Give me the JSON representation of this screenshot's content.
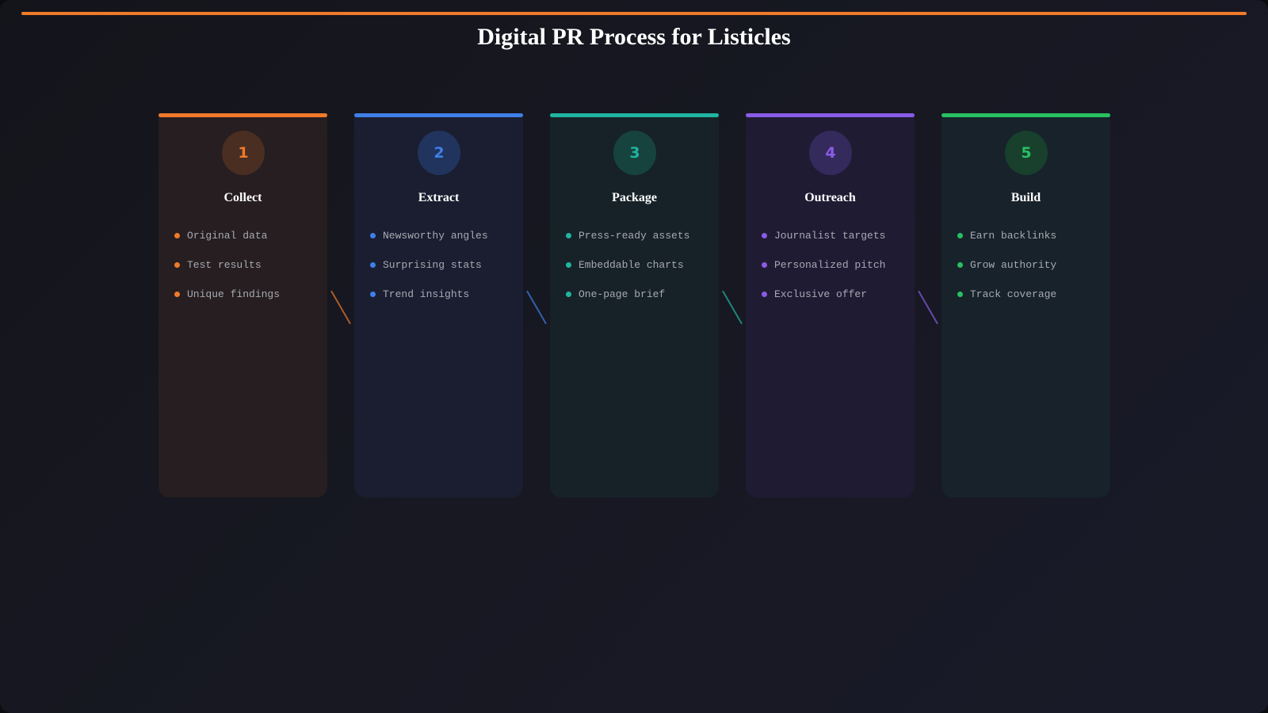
{
  "title": "Digital PR Process for Listicles",
  "accent": "#f07a2a",
  "steps": [
    {
      "number": "1",
      "label": "Collect",
      "color": "#f07a2a",
      "bg": "#261e20",
      "circle_bg": "#4a2e22",
      "items": [
        "Original data",
        "Test results",
        "Unique findings"
      ]
    },
    {
      "number": "2",
      "label": "Extract",
      "color": "#3f7fe8",
      "bg": "#1a1e30",
      "circle_bg": "#21345e",
      "items": [
        "Newsworthy angles",
        "Surprising stats",
        "Trend insights"
      ]
    },
    {
      "number": "3",
      "label": "Package",
      "color": "#1fb5a0",
      "bg": "#172228",
      "circle_bg": "#17433f",
      "items": [
        "Press-ready assets",
        "Embeddable charts",
        "One-page brief"
      ]
    },
    {
      "number": "4",
      "label": "Outreach",
      "color": "#8a5ce6",
      "bg": "#1f1b33",
      "circle_bg": "#352a5c",
      "items": [
        "Journalist targets",
        "Personalized pitch",
        "Exclusive offer"
      ]
    },
    {
      "number": "5",
      "label": "Build",
      "color": "#27c062",
      "bg": "#17222a",
      "circle_bg": "#18402d",
      "items": [
        "Earn backlinks",
        "Grow authority",
        "Track coverage"
      ]
    }
  ]
}
